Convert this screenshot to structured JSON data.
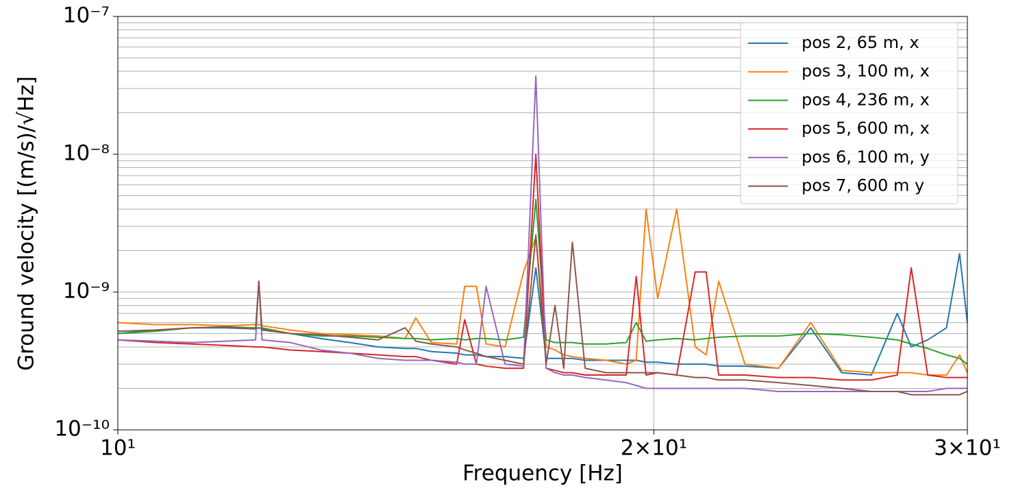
{
  "chart_data": {
    "type": "line",
    "xlabel": "Frequency [Hz]",
    "ylabel": "Ground velocity [(m/s)/√Hz]",
    "xscale": "log",
    "yscale": "log",
    "grid": true,
    "legend": "upper right",
    "xlim": [
      10,
      30
    ],
    "ylim": [
      1e-10,
      1e-07
    ],
    "xticks": [
      {
        "value": 10,
        "label": "10¹"
      },
      {
        "value": 20,
        "label": "2×10¹"
      },
      {
        "value": 30,
        "label": "3×10¹"
      }
    ],
    "yticks": [
      {
        "value": 1e-10,
        "label": "10⁻¹⁰"
      },
      {
        "value": 1e-09,
        "label": "10⁻⁹"
      },
      {
        "value": 1e-08,
        "label": "10⁻⁸"
      },
      {
        "value": 1e-07,
        "label": "10⁻⁷"
      }
    ],
    "yminorticks": [
      2e-10,
      3e-10,
      4e-10,
      5e-10,
      6e-10,
      7e-10,
      8e-10,
      9e-10,
      2e-09,
      3e-09,
      4e-09,
      5e-09,
      6e-09,
      7e-09,
      8e-09,
      9e-09,
      2e-08,
      3e-08,
      4e-08,
      5e-08,
      6e-08,
      7e-08,
      8e-08,
      9e-08
    ],
    "x": [
      10,
      10.5,
      11,
      11.5,
      11.95,
      12.0,
      12.05,
      12.5,
      13,
      13.5,
      14,
      14.5,
      14.7,
      15,
      15.5,
      15.66,
      15.9,
      16.1,
      16.5,
      16.9,
      17.17,
      17.4,
      17.6,
      17.8,
      18.0,
      18.3,
      18.8,
      19.3,
      19.55,
      19.8,
      20.1,
      20.6,
      21.1,
      21.4,
      21.75,
      22.5,
      23.5,
      24.5,
      25.5,
      26.5,
      27.4,
      27.9,
      28.5,
      29.2,
      29.7,
      30
    ],
    "series": [
      {
        "name": "pos 2, 65 m, x",
        "color": "#1f77b4",
        "values": [
          5e-10,
          5.3e-10,
          5.5e-10,
          5.5e-10,
          5.4e-10,
          5.5e-10,
          5.4e-10,
          5e-10,
          4.6e-10,
          4.3e-10,
          4e-10,
          3.9e-10,
          3.9e-10,
          3.7e-10,
          3.6e-10,
          3.5e-10,
          3.5e-10,
          3.4e-10,
          3.4e-10,
          3.3e-10,
          1.5e-09,
          3.3e-10,
          3.3e-10,
          3.3e-10,
          3.3e-10,
          3.2e-10,
          3.2e-10,
          3.2e-10,
          3.2e-10,
          3.1e-10,
          3.1e-10,
          3e-10,
          3e-10,
          3e-10,
          2.9e-10,
          2.9e-10,
          2.8e-10,
          5.5e-10,
          2.6e-10,
          2.5e-10,
          7e-10,
          4e-10,
          4.5e-10,
          5.5e-10,
          1.9e-09,
          6e-10
        ]
      },
      {
        "name": "pos 3, 100 m, x",
        "color": "#ff7f0e",
        "values": [
          6e-10,
          5.8e-10,
          5.8e-10,
          5.7e-10,
          5.8e-10,
          5.8e-10,
          5.7e-10,
          5.3e-10,
          5e-10,
          4.9e-10,
          4.8e-10,
          4.6e-10,
          6.5e-10,
          4.3e-10,
          4.2e-10,
          1.1e-09,
          1.1e-09,
          4.2e-10,
          4e-10,
          1.4e-09,
          2.5e-09,
          4e-10,
          3.8e-10,
          3.5e-10,
          3.4e-10,
          3.3e-10,
          3.2e-10,
          3e-10,
          3.2e-10,
          4e-09,
          9e-10,
          4e-09,
          4e-10,
          3.5e-10,
          1.2e-09,
          3e-10,
          2.8e-10,
          6e-10,
          2.7e-10,
          2.6e-10,
          2.6e-10,
          2.6e-10,
          2.5e-10,
          2.5e-10,
          3.5e-10,
          2.6e-10
        ]
      },
      {
        "name": "pos 4, 236 m, x",
        "color": "#2ca02c",
        "values": [
          5e-10,
          5.2e-10,
          5.5e-10,
          5.6e-10,
          5.5e-10,
          5.5e-10,
          5.5e-10,
          5e-10,
          4.8e-10,
          4.8e-10,
          4.7e-10,
          4.6e-10,
          4.6e-10,
          4.5e-10,
          4.6e-10,
          4.5e-10,
          4.6e-10,
          4.6e-10,
          4.5e-10,
          4.7e-10,
          4.7e-09,
          4.5e-10,
          4.3e-10,
          4.3e-10,
          4.3e-10,
          4.2e-10,
          4.2e-10,
          4.3e-10,
          6e-10,
          4.4e-10,
          4.5e-10,
          4.6e-10,
          4.5e-10,
          4.6e-10,
          4.7e-10,
          4.8e-10,
          4.8e-10,
          5e-10,
          4.9e-10,
          4.7e-10,
          4.5e-10,
          4.2e-10,
          3.9e-10,
          3.5e-10,
          3.3e-10,
          3e-10
        ]
      },
      {
        "name": "pos 5, 600 m, x",
        "color": "#d62728",
        "values": [
          4.5e-10,
          4.3e-10,
          4.2e-10,
          4.1e-10,
          4e-10,
          4e-10,
          4e-10,
          3.8e-10,
          3.7e-10,
          3.6e-10,
          3.5e-10,
          3.4e-10,
          3.4e-10,
          3.2e-10,
          3e-10,
          6.3e-10,
          3e-10,
          2.9e-10,
          2.8e-10,
          2.8e-10,
          1e-08,
          2.8e-10,
          2.7e-10,
          2.6e-10,
          2.6e-10,
          2.5e-10,
          2.5e-10,
          2.5e-10,
          1.3e-09,
          2.5e-10,
          2.6e-10,
          2.5e-10,
          1.4e-09,
          1.4e-09,
          2.5e-10,
          2.5e-10,
          2.4e-10,
          2.4e-10,
          2.3e-10,
          2.3e-10,
          2.5e-10,
          1.5e-09,
          2.5e-10,
          2.4e-10,
          2.4e-10,
          2.4e-10
        ]
      },
      {
        "name": "pos 6, 100 m, y",
        "color": "#9467bd",
        "values": [
          4.5e-10,
          4.4e-10,
          4.3e-10,
          4.4e-10,
          4.5e-10,
          1.2e-09,
          4.5e-10,
          4.3e-10,
          3.8e-10,
          3.6e-10,
          3.3e-10,
          3.2e-10,
          3.2e-10,
          3.2e-10,
          3.1e-10,
          3e-10,
          3e-10,
          1.1e-09,
          3e-10,
          2.9e-10,
          3.7e-08,
          2.8e-10,
          2.6e-10,
          2.5e-10,
          2.5e-10,
          2.4e-10,
          2.3e-10,
          2.2e-10,
          2.1e-10,
          2e-10,
          2e-10,
          2e-10,
          2e-10,
          2e-10,
          2e-10,
          2e-10,
          1.9e-10,
          1.9e-10,
          1.9e-10,
          1.9e-10,
          1.9e-10,
          1.9e-10,
          1.9e-10,
          2e-10,
          2e-10,
          2e-10
        ]
      },
      {
        "name": "pos 7, 600 m y",
        "color": "#8c564b",
        "values": [
          5.2e-10,
          5.3e-10,
          5.5e-10,
          5.6e-10,
          5.4e-10,
          1.2e-09,
          5.3e-10,
          5e-10,
          4.9e-10,
          4.7e-10,
          4.5e-10,
          5.5e-10,
          4.4e-10,
          4.2e-10,
          4e-10,
          3.8e-10,
          3.6e-10,
          3.4e-10,
          3.2e-10,
          3e-10,
          2.6e-09,
          3e-10,
          8e-10,
          2.8e-10,
          2.3e-09,
          2.8e-10,
          2.6e-10,
          2.6e-10,
          2.6e-10,
          2.6e-10,
          2.6e-10,
          2.5e-10,
          2.4e-10,
          2.4e-10,
          2.3e-10,
          2.3e-10,
          2.2e-10,
          2.1e-10,
          2e-10,
          1.9e-10,
          1.9e-10,
          1.8e-10,
          1.8e-10,
          1.8e-10,
          1.8e-10,
          1.9e-10
        ]
      }
    ]
  }
}
